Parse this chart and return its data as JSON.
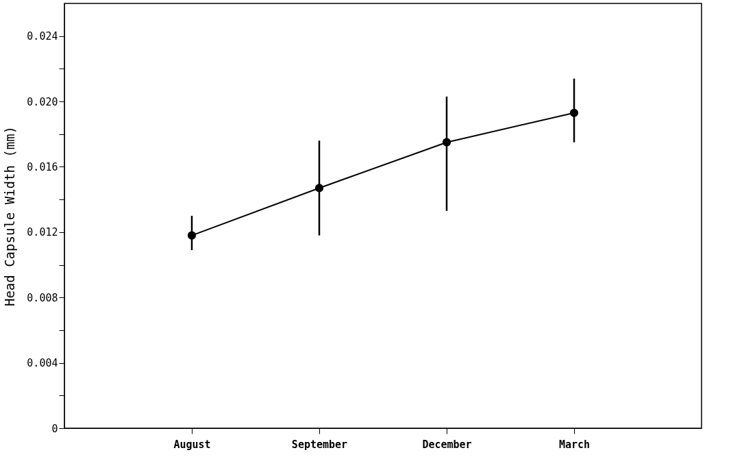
{
  "chart_data": {
    "type": "line",
    "ylabel": "Head Capsule Width (mm)",
    "categories": [
      "August",
      "September",
      "December",
      "March"
    ],
    "series": [
      {
        "color": "#000000",
        "values": [
          0.0118,
          0.0147,
          0.0175,
          0.0193
        ],
        "errors": [
          [
            0.0109,
            0.013
          ],
          [
            0.0118,
            0.0176
          ],
          [
            0.0133,
            0.0203
          ],
          [
            0.0175,
            0.0214
          ]
        ]
      }
    ],
    "ylim": [
      0,
      0.026
    ],
    "yticks": [
      0,
      {
        "value": 0.002,
        "label": null
      },
      0.004,
      {
        "value": 0.006,
        "label": null
      },
      0.008,
      {
        "value": 0.01,
        "label": null
      },
      0.012,
      {
        "value": 0.014,
        "label": null
      },
      0.016,
      {
        "value": 0.018,
        "label": null
      },
      {
        "value": 0.02,
        "label": "0.020"
      },
      {
        "value": 0.022,
        "label": null
      },
      0.024
    ],
    "marker": "circle",
    "line_style": "solid",
    "grid": false
  }
}
